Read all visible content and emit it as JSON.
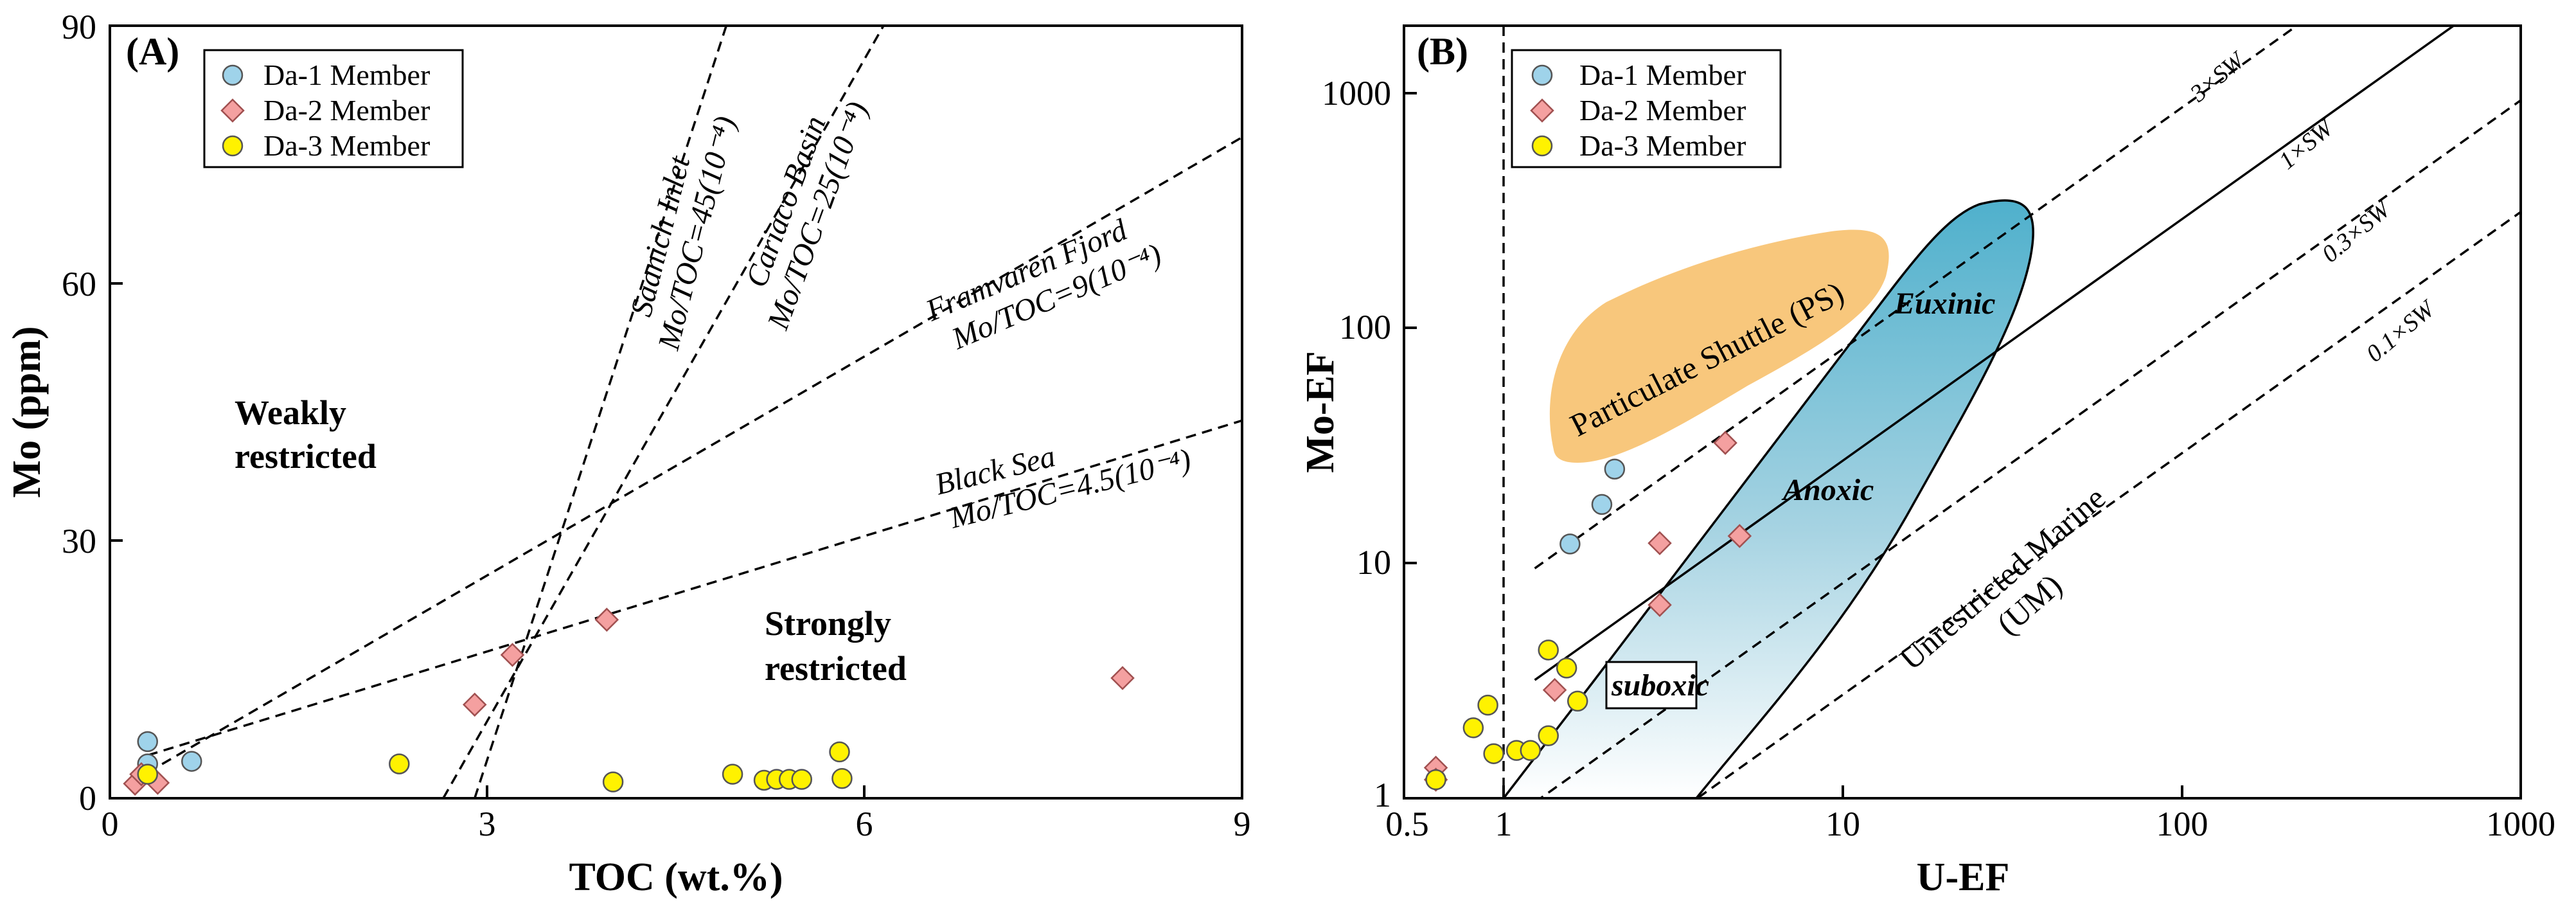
{
  "chart_data": [
    {
      "type": "scatter",
      "panel_label": "(A)",
      "xlabel": "TOC (wt.%)",
      "ylabel": "Mo (ppm)",
      "xlim": [
        0,
        9
      ],
      "ylim": [
        0,
        90
      ],
      "x_ticks": [
        "0",
        "3",
        "6",
        "9"
      ],
      "y_ticks": [
        "0",
        "30",
        "60",
        "90"
      ],
      "legend": [
        "Da-1 Member",
        "Da-2 Member",
        "Da-3 Member"
      ],
      "series": [
        {
          "name": "Da-1 Member",
          "color": "#9fd3ea",
          "marker": "circle",
          "points": [
            [
              0.3,
              6.6
            ],
            [
              0.3,
              4.0
            ],
            [
              0.65,
              4.3
            ]
          ]
        },
        {
          "name": "Da-2 Member",
          "color": "#f4a0a0",
          "marker": "diamond",
          "points": [
            [
              0.2,
              1.7
            ],
            [
              0.25,
              2.8
            ],
            [
              0.38,
              1.8
            ],
            [
              2.9,
              10.9
            ],
            [
              3.2,
              16.7
            ],
            [
              3.95,
              20.8
            ],
            [
              8.05,
              14.0
            ]
          ]
        },
        {
          "name": "Da-3 Member",
          "color": "#fff200",
          "marker": "circle",
          "points": [
            [
              0.3,
              2.8
            ],
            [
              2.3,
              4.0
            ],
            [
              4.0,
              1.9
            ],
            [
              4.95,
              2.8
            ],
            [
              5.2,
              2.1
            ],
            [
              5.3,
              2.2
            ],
            [
              5.4,
              2.2
            ],
            [
              5.5,
              2.2
            ],
            [
              5.8,
              5.4
            ],
            [
              5.82,
              2.3
            ]
          ]
        }
      ],
      "reference_lines": [
        {
          "name": "Saanich Inlet",
          "label": "Saanich Inlet",
          "formula": "Mo/TOC=45(10⁻⁴)",
          "p1": [
            2.9,
            0
          ],
          "p2": [
            4.9,
            90
          ]
        },
        {
          "name": "Cariaco Basin",
          "label": "Cariaco Basin",
          "formula": "Mo/TOC=25(10⁻⁴)",
          "p1": [
            2.65,
            0
          ],
          "p2": [
            6.15,
            90
          ]
        },
        {
          "name": "Framvaren Fjord",
          "label": "Framvaren Fjord",
          "formula": "Mo/TOC=9(10⁻⁴)",
          "p1": [
            0.3,
            3
          ],
          "p2": [
            9,
            77
          ]
        },
        {
          "name": "Black Sea",
          "label": "Black Sea",
          "formula": "Mo/TOC=4.5(10⁻⁴)",
          "p1": [
            0.3,
            5
          ],
          "p2": [
            9,
            44
          ]
        }
      ],
      "regions": [
        "Weakly",
        "restricted",
        "Strongly",
        "restricted"
      ]
    },
    {
      "type": "scatter",
      "panel_label": "(B)",
      "xlabel": "U-EF",
      "ylabel": "Mo-EF",
      "xscale": "log",
      "yscale": "log",
      "xlim": [
        0.4,
        1000
      ],
      "ylim": [
        1,
        2000
      ],
      "x_ticks": [
        "0.5",
        "1",
        "10",
        "100",
        "1000"
      ],
      "y_ticks": [
        "1",
        "10",
        "100",
        "1000"
      ],
      "legend": [
        "Da-1 Member",
        "Da-2 Member",
        "Da-3 Member"
      ],
      "series": [
        {
          "name": "Da-1 Member",
          "color": "#9fd3ea",
          "marker": "circle",
          "points": [
            [
              1.28,
              12.2
            ],
            [
              1.6,
              18.0
            ],
            [
              1.75,
              25.5
            ]
          ]
        },
        {
          "name": "Da-2 Member",
          "color": "#f4a0a0",
          "marker": "diamond",
          "points": [
            [
              0.5,
              1.35
            ],
            [
              0.5,
              1.2
            ],
            [
              1.15,
              2.9
            ],
            [
              2.4,
              12.3
            ],
            [
              2.4,
              6.7
            ],
            [
              3.8,
              33.0
            ],
            [
              4.2,
              13.2
            ]
          ]
        },
        {
          "name": "Da-3 Member",
          "color": "#fff200",
          "marker": "circle",
          "points": [
            [
              0.5,
              1.2
            ],
            [
              0.65,
              2.0
            ],
            [
              0.72,
              2.5
            ],
            [
              0.75,
              1.55
            ],
            [
              0.88,
              1.6
            ],
            [
              0.97,
              1.6
            ],
            [
              1.1,
              1.85
            ],
            [
              1.1,
              4.3
            ],
            [
              1.25,
              3.6
            ],
            [
              1.35,
              2.6
            ]
          ]
        }
      ],
      "sw_lines": [
        {
          "label": "3×SW",
          "ratio": 3
        },
        {
          "label": "1×SW",
          "ratio": 1
        },
        {
          "label": "0.3×SW",
          "ratio": 0.3
        },
        {
          "label": "0.1×SW",
          "ratio": 0.1
        }
      ],
      "regions": [
        "Particulate Shuttle (PS)",
        "Euxinic",
        "Anoxic",
        "suboxic",
        "Unrestricted Marine",
        "(UM)"
      ]
    }
  ]
}
